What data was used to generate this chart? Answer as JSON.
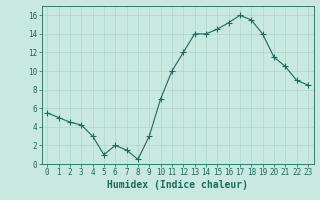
{
  "x": [
    0,
    1,
    2,
    3,
    4,
    5,
    6,
    7,
    8,
    9,
    10,
    11,
    12,
    13,
    14,
    15,
    16,
    17,
    18,
    19,
    20,
    21,
    22,
    23
  ],
  "y": [
    5.5,
    5.0,
    4.5,
    4.2,
    3.0,
    1.0,
    2.0,
    1.5,
    0.5,
    3.0,
    7.0,
    10.0,
    12.0,
    14.0,
    14.0,
    14.5,
    15.2,
    16.0,
    15.5,
    14.0,
    11.5,
    10.5,
    9.0,
    8.5
  ],
  "xlabel": "Humidex (Indice chaleur)",
  "xlim": [
    -0.5,
    23.5
  ],
  "ylim": [
    0,
    17
  ],
  "yticks": [
    0,
    2,
    4,
    6,
    8,
    10,
    12,
    14,
    16
  ],
  "xticks": [
    0,
    1,
    2,
    3,
    4,
    5,
    6,
    7,
    8,
    9,
    10,
    11,
    12,
    13,
    14,
    15,
    16,
    17,
    18,
    19,
    20,
    21,
    22,
    23
  ],
  "line_color": "#1a6b60",
  "marker": "+",
  "marker_size": 4,
  "bg_color": "#c8e8e0",
  "grid_color": "#b0d4cc",
  "fig_bg": "#c8e8e0",
  "tick_fontsize": 5.5,
  "xlabel_fontsize": 7
}
